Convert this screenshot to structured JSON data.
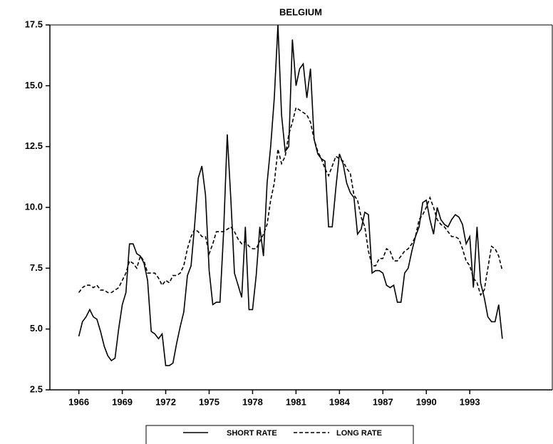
{
  "chart_data": {
    "type": "line",
    "title": "BELGIUM",
    "x": [
      1966,
      1966.25,
      1966.5,
      1966.75,
      1967,
      1967.25,
      1967.5,
      1967.75,
      1968,
      1968.25,
      1968.5,
      1968.75,
      1969,
      1969.25,
      1969.5,
      1969.75,
      1970,
      1970.25,
      1970.5,
      1970.75,
      1971,
      1971.25,
      1971.5,
      1971.75,
      1972,
      1972.25,
      1972.5,
      1972.75,
      1973,
      1973.25,
      1973.5,
      1973.75,
      1974,
      1974.25,
      1974.5,
      1974.75,
      1975,
      1975.25,
      1975.5,
      1975.75,
      1976,
      1976.25,
      1976.5,
      1976.75,
      1977,
      1977.25,
      1977.5,
      1977.75,
      1978,
      1978.25,
      1978.5,
      1978.75,
      1979,
      1979.25,
      1979.5,
      1979.75,
      1980,
      1980.25,
      1980.5,
      1980.75,
      1981,
      1981.25,
      1981.5,
      1981.75,
      1982,
      1982.25,
      1982.5,
      1982.75,
      1983,
      1983.25,
      1983.5,
      1983.75,
      1984,
      1984.25,
      1984.5,
      1984.75,
      1985,
      1985.25,
      1985.5,
      1985.75,
      1986,
      1986.25,
      1986.5,
      1986.75,
      1987,
      1987.25,
      1987.5,
      1987.75,
      1988,
      1988.25,
      1988.5,
      1988.75,
      1989,
      1989.25,
      1989.5,
      1989.75,
      1990,
      1990.25,
      1990.5,
      1990.75,
      1991,
      1991.25,
      1991.5,
      1991.75,
      1992,
      1992.25,
      1992.5,
      1992.75,
      1993,
      1993.25,
      1993.5,
      1993.75,
      1994,
      1994.25,
      1994.5,
      1994.75,
      1995,
      1995.25
    ],
    "series": [
      {
        "name": "SHORT RATE",
        "color": "#000000",
        "dash": "solid",
        "values": [
          4.7,
          5.3,
          5.5,
          5.8,
          5.5,
          5.4,
          4.9,
          4.3,
          3.9,
          3.7,
          3.8,
          5.0,
          6.0,
          6.5,
          8.5,
          8.5,
          8.1,
          8.0,
          7.7,
          7.0,
          4.9,
          4.8,
          4.6,
          4.8,
          3.5,
          3.5,
          3.6,
          4.4,
          5.1,
          5.7,
          7.2,
          7.6,
          9.3,
          11.2,
          11.7,
          10.5,
          7.4,
          6.0,
          6.1,
          6.1,
          9.0,
          13.0,
          10.3,
          7.3,
          6.8,
          6.3,
          9.2,
          5.8,
          5.8,
          7.2,
          9.2,
          8.0,
          11.0,
          12.5,
          14.5,
          17.5,
          13.8,
          12.3,
          12.5,
          16.9,
          15.0,
          15.7,
          15.9,
          14.5,
          15.7,
          12.8,
          12.2,
          12.0,
          11.9,
          9.2,
          9.2,
          10.8,
          12.2,
          11.8,
          11.0,
          10.6,
          10.4,
          8.9,
          9.1,
          9.8,
          9.7,
          7.3,
          7.4,
          7.4,
          7.3,
          6.8,
          6.7,
          6.8,
          6.1,
          6.1,
          7.3,
          7.5,
          8.2,
          8.8,
          9.2,
          10.2,
          10.3,
          9.5,
          8.9,
          10.0,
          9.5,
          9.3,
          9.2,
          9.5,
          9.7,
          9.6,
          9.3,
          8.5,
          8.8,
          6.7,
          9.2,
          6.9,
          6.3,
          5.5,
          5.3,
          5.3,
          6.0,
          4.6
        ]
      },
      {
        "name": "LONG RATE",
        "color": "#000000",
        "dash": "dashed",
        "values": [
          6.5,
          6.7,
          6.8,
          6.8,
          6.7,
          6.8,
          6.6,
          6.6,
          6.5,
          6.5,
          6.6,
          6.7,
          7.0,
          7.3,
          7.8,
          7.7,
          7.5,
          8.0,
          7.8,
          7.3,
          7.3,
          7.3,
          7.1,
          6.8,
          7.0,
          6.9,
          7.2,
          7.2,
          7.3,
          7.6,
          8.3,
          8.8,
          9.1,
          9.0,
          8.8,
          8.8,
          8.1,
          8.5,
          9.0,
          9.0,
          9.0,
          9.1,
          9.2,
          9.0,
          8.7,
          8.5,
          8.6,
          8.4,
          8.3,
          8.3,
          8.6,
          8.9,
          9.3,
          10.3,
          11.0,
          12.4,
          11.8,
          12.1,
          13.0,
          13.5,
          14.1,
          14.0,
          13.9,
          13.8,
          13.5,
          12.8,
          12.3,
          12.0,
          11.6,
          11.3,
          11.7,
          12.1,
          12.0,
          11.9,
          11.6,
          11.4,
          10.5,
          10.3,
          9.6,
          9.2,
          8.2,
          7.6,
          7.6,
          7.9,
          7.9,
          8.3,
          8.2,
          7.8,
          7.8,
          8.0,
          8.2,
          8.3,
          8.5,
          8.8,
          9.5,
          9.7,
          10.0,
          10.4,
          10.0,
          9.5,
          9.3,
          9.2,
          9.0,
          8.8,
          8.8,
          8.7,
          8.3,
          7.8,
          7.6,
          7.1,
          6.9,
          6.4,
          6.6,
          7.5,
          8.4,
          8.3,
          8.0,
          7.4
        ]
      }
    ],
    "xlim": [
      1964,
      1998.7
    ],
    "xticks": [
      1966,
      1969,
      1972,
      1975,
      1978,
      1981,
      1984,
      1987,
      1990,
      1993
    ],
    "ylim": [
      2.5,
      17.5
    ],
    "yticks": [
      2.5,
      {
        "value": 5,
        "label": "5.0"
      },
      7.5,
      {
        "value": 10,
        "label": "10.0"
      },
      12.5,
      {
        "value": 15,
        "label": "15.0"
      },
      17.5
    ]
  }
}
